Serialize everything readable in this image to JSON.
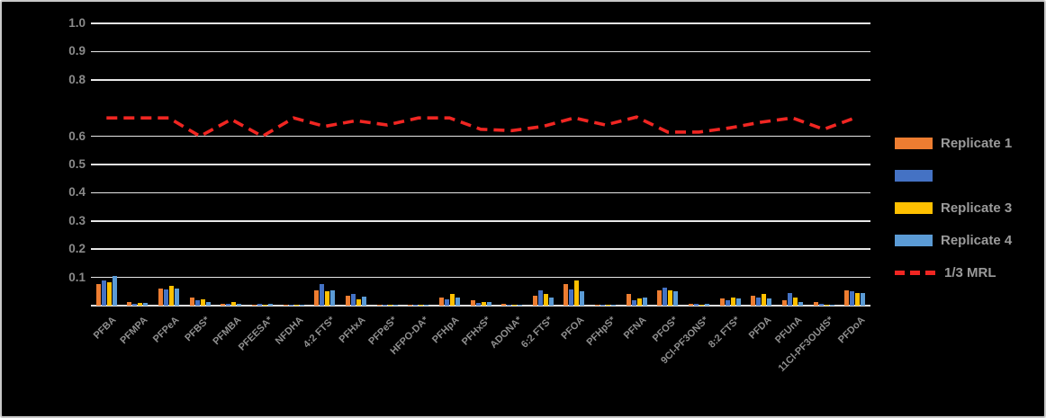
{
  "chart_data": {
    "type": "bar",
    "title": "",
    "xlabel": "",
    "ylabel": "",
    "ylim": [
      0,
      1.0
    ],
    "grid": true,
    "legend_position": "right",
    "yticks_shown": [
      "1.0",
      "0.9",
      "0.8",
      "0.6",
      "0.5",
      "0.4",
      "0.3",
      "0.2",
      "0.1"
    ],
    "ytick_values": [
      1.0,
      0.9,
      0.8,
      0.6,
      0.5,
      0.4,
      0.3,
      0.2,
      0.1
    ],
    "categories": [
      "PFBA",
      "PFMPA",
      "PFPeA",
      "PFBS*",
      "PFMBA",
      "PFEESA*",
      "NFDHA",
      "4:2 FTS*",
      "PFHxA",
      "PFPeS*",
      "HFPO-DA*",
      "PFHpA",
      "PFHxS*",
      "ADONA*",
      "6:2 FTS*",
      "PFOA",
      "PFHpS*",
      "PFNA",
      "PFOS*",
      "9Cl-PF3ONS*",
      "8:2 FTS*",
      "PFDA",
      "PFUnA",
      "11Cl-PF3OUdS*",
      "PFDoA"
    ],
    "series": [
      {
        "name": "Replicate 1",
        "color": "#ED7D31",
        "values": [
          0.078,
          0.012,
          0.062,
          0.028,
          0.008,
          0.004,
          0.003,
          0.055,
          0.034,
          0.002,
          0.002,
          0.03,
          0.018,
          0.005,
          0.035,
          0.078,
          0.002,
          0.04,
          0.055,
          0.005,
          0.025,
          0.035,
          0.018,
          0.012,
          0.055
        ]
      },
      {
        "name": "",
        "color": "#4472C4",
        "values": [
          0.09,
          0.008,
          0.058,
          0.02,
          0.006,
          0.006,
          0.003,
          0.075,
          0.04,
          0.002,
          0.002,
          0.022,
          0.01,
          0.004,
          0.055,
          0.058,
          0.002,
          0.018,
          0.065,
          0.008,
          0.018,
          0.03,
          0.045,
          0.005,
          0.05
        ]
      },
      {
        "name": "Replicate 3",
        "color": "#FFC000",
        "values": [
          0.082,
          0.01,
          0.07,
          0.022,
          0.012,
          0.004,
          0.003,
          0.05,
          0.022,
          0.002,
          0.002,
          0.04,
          0.012,
          0.003,
          0.04,
          0.09,
          0.002,
          0.025,
          0.055,
          0.004,
          0.028,
          0.04,
          0.03,
          0.003,
          0.045
        ]
      },
      {
        "name": "Replicate 4",
        "color": "#5B9BD5",
        "values": [
          0.104,
          0.01,
          0.06,
          0.012,
          0.008,
          0.005,
          0.004,
          0.055,
          0.032,
          0.002,
          0.002,
          0.03,
          0.012,
          0.003,
          0.03,
          0.05,
          0.002,
          0.03,
          0.05,
          0.008,
          0.025,
          0.025,
          0.012,
          0.003,
          0.045
        ]
      }
    ],
    "line_series": [
      {
        "name": "1/3 MRL",
        "color": "#F02622",
        "dash": true,
        "values": [
          0.665,
          0.665,
          0.665,
          0.6,
          0.66,
          0.6,
          0.665,
          0.635,
          0.655,
          0.64,
          0.665,
          0.665,
          0.625,
          0.62,
          0.635,
          0.665,
          0.64,
          0.668,
          0.615,
          0.615,
          0.63,
          0.65,
          0.665,
          0.625,
          0.665
        ]
      }
    ]
  },
  "legend": {
    "items": [
      {
        "label": "Replicate 1",
        "color": "#ED7D31",
        "marker": "bar"
      },
      {
        "label": "",
        "color": "#4472C4",
        "marker": "bar"
      },
      {
        "label": "Replicate 3",
        "color": "#FFC000",
        "marker": "bar"
      },
      {
        "label": "Replicate 4",
        "color": "#5B9BD5",
        "marker": "bar"
      },
      {
        "label": "1/3 MRL",
        "color": "#F02622",
        "marker": "dash"
      }
    ]
  },
  "colors": {
    "background": "#000000",
    "gridline": "#E7E7E7",
    "tick_text": "#8A8A8A",
    "xlabel_text": "#8F8F8F",
    "legend_text": "#9B9B9B",
    "border": "#C9C9C9"
  }
}
